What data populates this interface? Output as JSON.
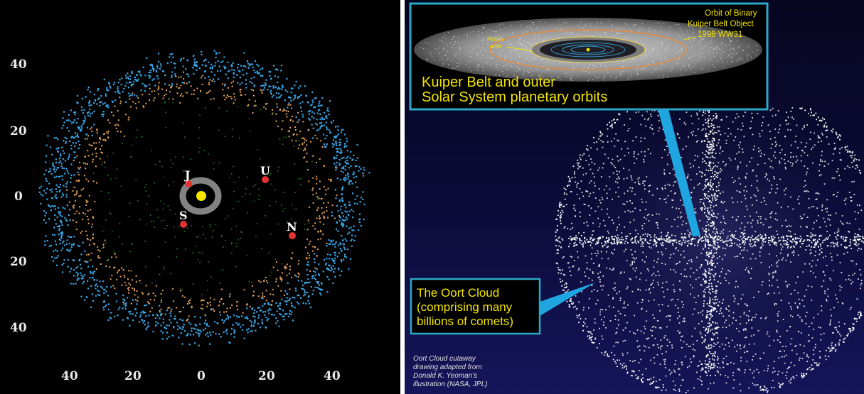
{
  "left_panel": {
    "y_ticks": [
      "40",
      "20",
      "0",
      "20",
      "40"
    ],
    "x_ticks": [
      "40",
      "20",
      "0",
      "20",
      "40"
    ],
    "planets": [
      {
        "id": "jupiter",
        "label": "J"
      },
      {
        "id": "saturn",
        "label": "S"
      },
      {
        "id": "uranus",
        "label": "U"
      },
      {
        "id": "neptune",
        "label": "N"
      }
    ],
    "colors": {
      "kuiper_blue": "#3aa6e6",
      "kuiper_orange": "#e8a35e",
      "inner_green": "#2e7a2e",
      "planet_red": "#e33232",
      "sun_yellow": "#f6e800",
      "asteroid_gray": "#9a9a9a"
    }
  },
  "right_panel": {
    "kuiper_callout": {
      "title_line1": "Kuiper Belt and outer",
      "title_line2": "Solar System planetary orbits",
      "orbit_label_line1": "Orbit of Binary",
      "orbit_label_line2": "Kuiper Belt Object",
      "orbit_label_line3": "1998 WW31",
      "pluto_label_line1": "Pluto's",
      "pluto_label_line2": "orbit"
    },
    "oort_callout": {
      "line1": "The Oort Cloud",
      "line2": "(comprising many",
      "line3": "billions of comets)"
    },
    "credit": {
      "line1": "Oort Cloud cutaway",
      "line2": "drawing adapted from",
      "line3": "Donald K. Yeoman's",
      "line4": "illustration (NASA, JPL)"
    },
    "colors": {
      "callout_border": "#2aa8c8",
      "callout_text": "#f2e400",
      "pointer": "#1fa6e0"
    }
  }
}
